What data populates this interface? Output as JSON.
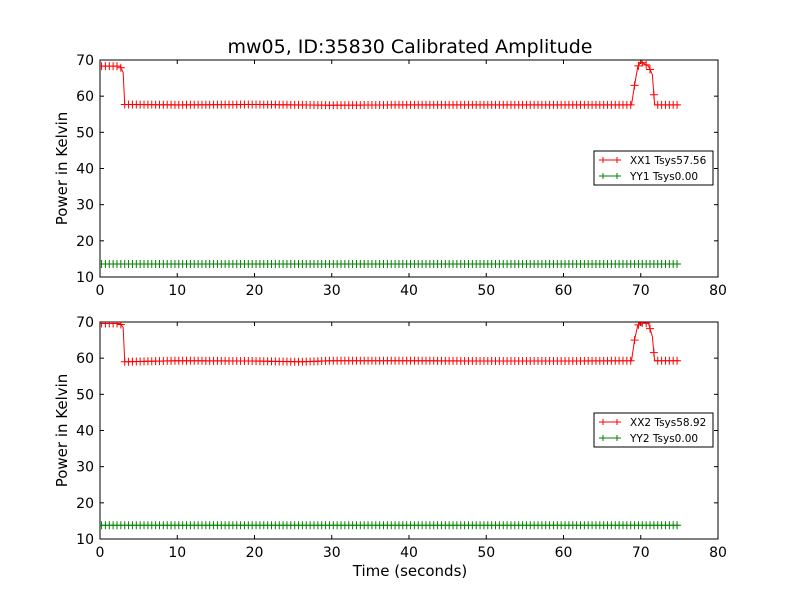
{
  "chart_data": {
    "type": "line",
    "title": "mw05, ID:35830 Calibrated Amplitude",
    "xlabel": "Time (seconds)",
    "subplots": [
      {
        "ylabel": "Power in Kelvin",
        "xlim": [
          0,
          80
        ],
        "ylim": [
          10,
          70
        ],
        "xticks": [
          "0",
          "10",
          "20",
          "30",
          "40",
          "50",
          "60",
          "70",
          "80"
        ],
        "yticks": [
          "10",
          "20",
          "30",
          "40",
          "50",
          "60",
          "70"
        ],
        "legend_position": "center-right",
        "series": [
          {
            "name": "XX1 Tsys57.56",
            "color": "#ff0000",
            "marker": "plus",
            "points": [
              [
                0.2,
                68.3
              ],
              [
                2.6,
                68.3
              ],
              [
                3.0,
                66.5
              ],
              [
                3.2,
                57.7
              ],
              [
                10,
                57.6
              ],
              [
                20,
                57.7
              ],
              [
                30,
                57.5
              ],
              [
                40,
                57.6
              ],
              [
                50,
                57.6
              ],
              [
                60,
                57.6
              ],
              [
                68.8,
                57.6
              ],
              [
                69.2,
                63.0
              ],
              [
                69.6,
                68.0
              ],
              [
                70.0,
                69.5
              ],
              [
                71.0,
                68.3
              ],
              [
                71.5,
                66.0
              ],
              [
                71.8,
                57.6
              ],
              [
                75.0,
                57.6
              ]
            ]
          },
          {
            "name": "YY1 Tsys0.00",
            "color": "#008000",
            "marker": "plus",
            "points": [
              [
                0.2,
                13.6
              ],
              [
                75.0,
                13.6
              ]
            ]
          }
        ]
      },
      {
        "ylabel": "Power in Kelvin",
        "xlim": [
          0,
          80
        ],
        "ylim": [
          10,
          70
        ],
        "xticks": [
          "0",
          "10",
          "20",
          "30",
          "40",
          "50",
          "60",
          "70",
          "80"
        ],
        "yticks": [
          "10",
          "20",
          "30",
          "40",
          "50",
          "60",
          "70"
        ],
        "legend_position": "center-right",
        "series": [
          {
            "name": "XX2 Tsys58.92",
            "color": "#ff0000",
            "marker": "plus",
            "points": [
              [
                0.2,
                69.6
              ],
              [
                2.6,
                69.6
              ],
              [
                3.0,
                68.5
              ],
              [
                3.2,
                59.0
              ],
              [
                10,
                59.3
              ],
              [
                20,
                59.2
              ],
              [
                26,
                59.0
              ],
              [
                30,
                59.3
              ],
              [
                40,
                59.3
              ],
              [
                50,
                59.2
              ],
              [
                60,
                59.2
              ],
              [
                68.8,
                59.3
              ],
              [
                69.2,
                65.0
              ],
              [
                69.6,
                69.0
              ],
              [
                70.0,
                69.8
              ],
              [
                71.0,
                69.6
              ],
              [
                71.5,
                66.0
              ],
              [
                71.8,
                59.3
              ],
              [
                75.0,
                59.3
              ]
            ]
          },
          {
            "name": "YY2 Tsys0.00",
            "color": "#008000",
            "marker": "plus",
            "points": [
              [
                0.2,
                13.8
              ],
              [
                75.0,
                13.8
              ]
            ]
          }
        ]
      }
    ]
  }
}
